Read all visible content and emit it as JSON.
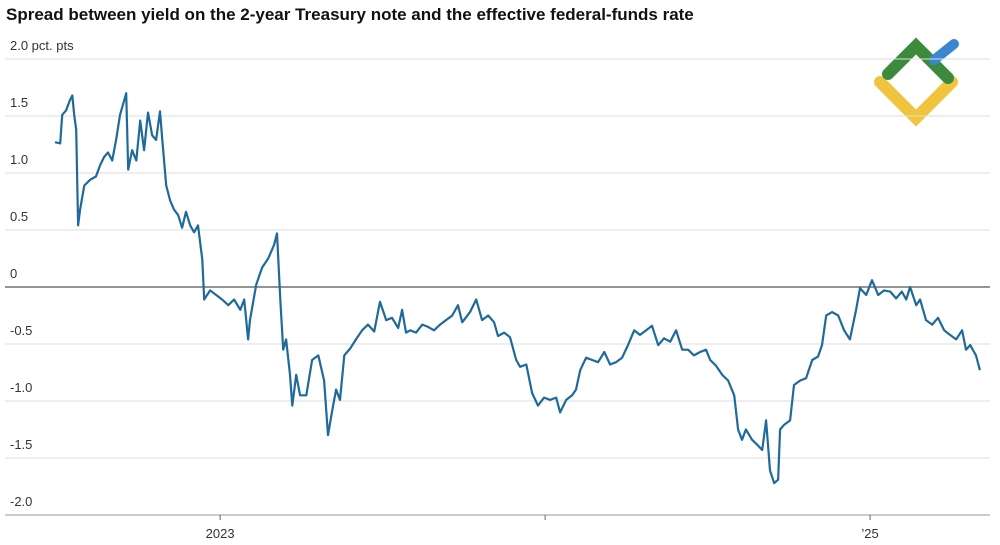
{
  "chart_data": {
    "type": "line",
    "title": "Spread between yield on the 2-year Treasury note and the effective federal-funds rate",
    "xlim": [
      2022.338,
      2025.369
    ],
    "xticks": [
      2023,
      {
        "value": 2024,
        "label": null
      },
      {
        "value": 2025,
        "label": "’25"
      }
    ],
    "ylim": [
      -2,
      2
    ],
    "yticks": [
      {
        "value": -2,
        "label": "-2.0"
      },
      -1.5,
      {
        "value": -1,
        "label": "-1.0"
      },
      -0.5,
      0,
      0.5,
      {
        "value": 1,
        "label": "1.0"
      },
      1.5,
      {
        "value": 2,
        "label": "2.0 pct. pts"
      }
    ],
    "grid": true,
    "series": [
      {
        "color": "#1f6a9a",
        "x": [
          2022.492,
          2022.508,
          2022.514,
          2022.526,
          2022.538,
          2022.545,
          2022.551,
          2022.557,
          2022.563,
          2022.569,
          2022.582,
          2022.6,
          2022.618,
          2022.631,
          2022.643,
          2022.655,
          2022.668,
          2022.68,
          2022.692,
          2022.705,
          2022.711,
          2022.717,
          2022.729,
          2022.742,
          2022.754,
          2022.766,
          2022.778,
          2022.791,
          2022.803,
          2022.815,
          2022.822,
          2022.834,
          2022.846,
          2022.858,
          2022.871,
          2022.883,
          2022.895,
          2022.908,
          2022.92,
          2022.932,
          2022.945,
          2022.951,
          2022.969,
          2022.988,
          2023.006,
          2023.025,
          2023.043,
          2023.062,
          2023.074,
          2023.086,
          2023.092,
          2023.111,
          2023.129,
          2023.148,
          2023.166,
          2023.175,
          2023.185,
          2023.194,
          2023.203,
          2023.215,
          2023.222,
          2023.234,
          2023.246,
          2023.265,
          2023.283,
          2023.302,
          2023.32,
          2023.332,
          2023.345,
          2023.357,
          2023.369,
          2023.382,
          2023.4,
          2023.418,
          2023.437,
          2023.455,
          2023.474,
          2023.492,
          2023.511,
          2023.529,
          2023.548,
          2023.56,
          2023.572,
          2023.585,
          2023.603,
          2023.622,
          2023.64,
          2023.658,
          2023.677,
          2023.695,
          2023.714,
          2023.732,
          2023.745,
          2023.769,
          2023.788,
          2023.806,
          2023.825,
          2023.843,
          2023.855,
          2023.874,
          2023.892,
          2023.911,
          2023.923,
          2023.942,
          2023.96,
          2023.978,
          2023.997,
          2024.015,
          2024.034,
          2024.046,
          2024.065,
          2024.083,
          2024.095,
          2024.108,
          2024.126,
          2024.145,
          2024.163,
          2024.182,
          2024.2,
          2024.218,
          2024.237,
          2024.255,
          2024.274,
          2024.292,
          2024.311,
          2024.329,
          2024.348,
          2024.366,
          2024.385,
          2024.403,
          2024.422,
          2024.44,
          2024.458,
          2024.477,
          2024.495,
          2024.508,
          2024.526,
          2024.545,
          2024.563,
          2024.582,
          2024.594,
          2024.606,
          2024.618,
          2024.637,
          2024.655,
          2024.668,
          2024.68,
          2024.692,
          2024.705,
          2024.717,
          2024.723,
          2024.735,
          2024.754,
          2024.766,
          2024.785,
          2024.803,
          2024.822,
          2024.84,
          2024.852,
          2024.865,
          2024.883,
          2024.902,
          2024.92,
          2024.938,
          2024.957,
          2024.969,
          2024.988,
          2025.006,
          2025.025,
          2025.043,
          2025.062,
          2025.08,
          2025.098,
          2025.111,
          2025.123,
          2025.142,
          2025.154,
          2025.172,
          2025.191,
          2025.209,
          2025.228,
          2025.246,
          2025.265,
          2025.283,
          2025.295,
          2025.308,
          2025.326,
          2025.338
        ],
        "values": [
          1.27,
          1.26,
          1.51,
          1.55,
          1.64,
          1.68,
          1.51,
          1.38,
          0.54,
          0.68,
          0.89,
          0.94,
          0.97,
          1.07,
          1.14,
          1.18,
          1.11,
          1.29,
          1.51,
          1.64,
          1.7,
          1.03,
          1.2,
          1.11,
          1.46,
          1.2,
          1.53,
          1.33,
          1.29,
          1.54,
          1.29,
          0.89,
          0.76,
          0.68,
          0.63,
          0.52,
          0.66,
          0.54,
          0.48,
          0.54,
          0.24,
          -0.11,
          -0.03,
          -0.07,
          -0.11,
          -0.16,
          -0.11,
          -0.2,
          -0.11,
          -0.46,
          -0.29,
          0.02,
          0.17,
          0.25,
          0.37,
          0.47,
          -0.11,
          -0.55,
          -0.46,
          -0.77,
          -1.04,
          -0.77,
          -0.95,
          -0.95,
          -0.64,
          -0.6,
          -0.82,
          -1.3,
          -1.08,
          -0.9,
          -0.99,
          -0.6,
          -0.54,
          -0.46,
          -0.38,
          -0.33,
          -0.39,
          -0.13,
          -0.29,
          -0.27,
          -0.36,
          -0.2,
          -0.4,
          -0.38,
          -0.4,
          -0.33,
          -0.35,
          -0.38,
          -0.33,
          -0.29,
          -0.25,
          -0.16,
          -0.31,
          -0.22,
          -0.11,
          -0.29,
          -0.25,
          -0.31,
          -0.43,
          -0.4,
          -0.44,
          -0.64,
          -0.7,
          -0.68,
          -0.93,
          -1.04,
          -0.97,
          -0.99,
          -0.97,
          -1.1,
          -0.99,
          -0.95,
          -0.9,
          -0.73,
          -0.62,
          -0.64,
          -0.66,
          -0.57,
          -0.68,
          -0.66,
          -0.62,
          -0.51,
          -0.38,
          -0.42,
          -0.38,
          -0.34,
          -0.51,
          -0.45,
          -0.48,
          -0.38,
          -0.55,
          -0.55,
          -0.6,
          -0.57,
          -0.55,
          -0.64,
          -0.69,
          -0.77,
          -0.82,
          -0.95,
          -1.25,
          -1.34,
          -1.25,
          -1.34,
          -1.39,
          -1.43,
          -1.17,
          -1.61,
          -1.72,
          -1.69,
          -1.25,
          -1.21,
          -1.17,
          -0.86,
          -0.82,
          -0.8,
          -0.64,
          -0.61,
          -0.51,
          -0.25,
          -0.22,
          -0.25,
          -0.38,
          -0.46,
          -0.2,
          -0.01,
          -0.07,
          0.06,
          -0.07,
          -0.03,
          -0.04,
          -0.1,
          -0.04,
          -0.11,
          0,
          -0.16,
          -0.11,
          -0.29,
          -0.33,
          -0.27,
          -0.38,
          -0.42,
          -0.46,
          -0.38,
          -0.55,
          -0.51,
          -0.6,
          -0.73
        ]
      }
    ]
  }
}
